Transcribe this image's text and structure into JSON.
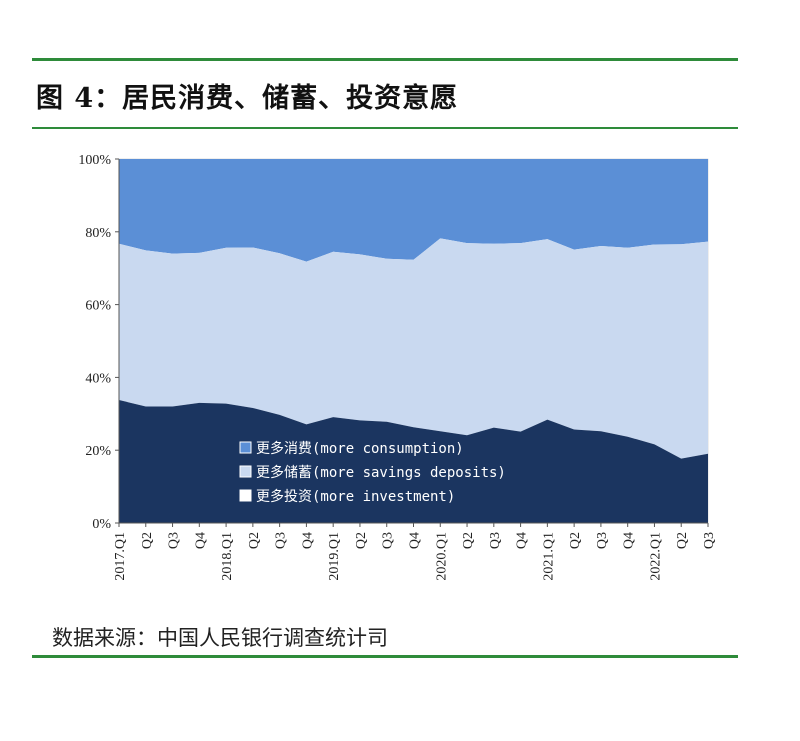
{
  "figure": {
    "title": "图 4：居民消费、储蓄、投资意愿",
    "source": "数据来源：中国人民银行调查统计司"
  },
  "colors": {
    "rule": "#2e8b3a",
    "consumption": "#5b8fd6",
    "savings": "#c9d9f0",
    "investment": "#1b3560"
  },
  "chart_data": {
    "type": "area",
    "stacked": true,
    "x": [
      "2017.Q1",
      "Q2",
      "Q3",
      "Q4",
      "2018.Q1",
      "Q2",
      "Q3",
      "Q4",
      "2019.Q1",
      "Q2",
      "Q3",
      "Q4",
      "2020.Q1",
      "Q2",
      "Q3",
      "Q4",
      "2021.Q1",
      "Q2",
      "Q3",
      "Q4",
      "2022.Q1",
      "Q2",
      "Q3"
    ],
    "ylim": [
      0,
      100
    ],
    "yticks": [
      "0%",
      "20%",
      "40%",
      "60%",
      "80%",
      "100%"
    ],
    "series": [
      {
        "name": "更多投资(more investment)",
        "values": [
          33.8,
          32.0,
          32.0,
          33.0,
          32.8,
          31.6,
          29.7,
          27.1,
          29.1,
          28.2,
          27.8,
          26.3,
          25.2,
          24.1,
          26.2,
          25.1,
          28.4,
          25.7,
          25.2,
          23.7,
          21.6,
          17.7,
          19.0
        ]
      },
      {
        "name": "更多储蓄(more savings deposits)",
        "values": [
          42.9,
          42.9,
          42.0,
          41.2,
          42.8,
          44.1,
          44.4,
          44.7,
          45.4,
          45.6,
          44.8,
          46.0,
          53.0,
          52.8,
          50.5,
          51.8,
          49.6,
          49.4,
          50.9,
          51.9,
          54.9,
          58.9,
          58.3
        ]
      },
      {
        "name": "更多消费(more consumption)",
        "values": [
          23.3,
          25.1,
          26.0,
          25.8,
          24.4,
          24.3,
          25.9,
          28.2,
          25.5,
          26.2,
          27.4,
          27.7,
          21.8,
          23.1,
          23.3,
          23.1,
          22.0,
          24.9,
          23.9,
          24.4,
          23.5,
          23.4,
          22.7
        ]
      }
    ],
    "legend": {
      "position": "lower-center",
      "entries": [
        "更多消费(more consumption)",
        "更多储蓄(more savings deposits)",
        "更多投资(more investment)"
      ]
    }
  }
}
